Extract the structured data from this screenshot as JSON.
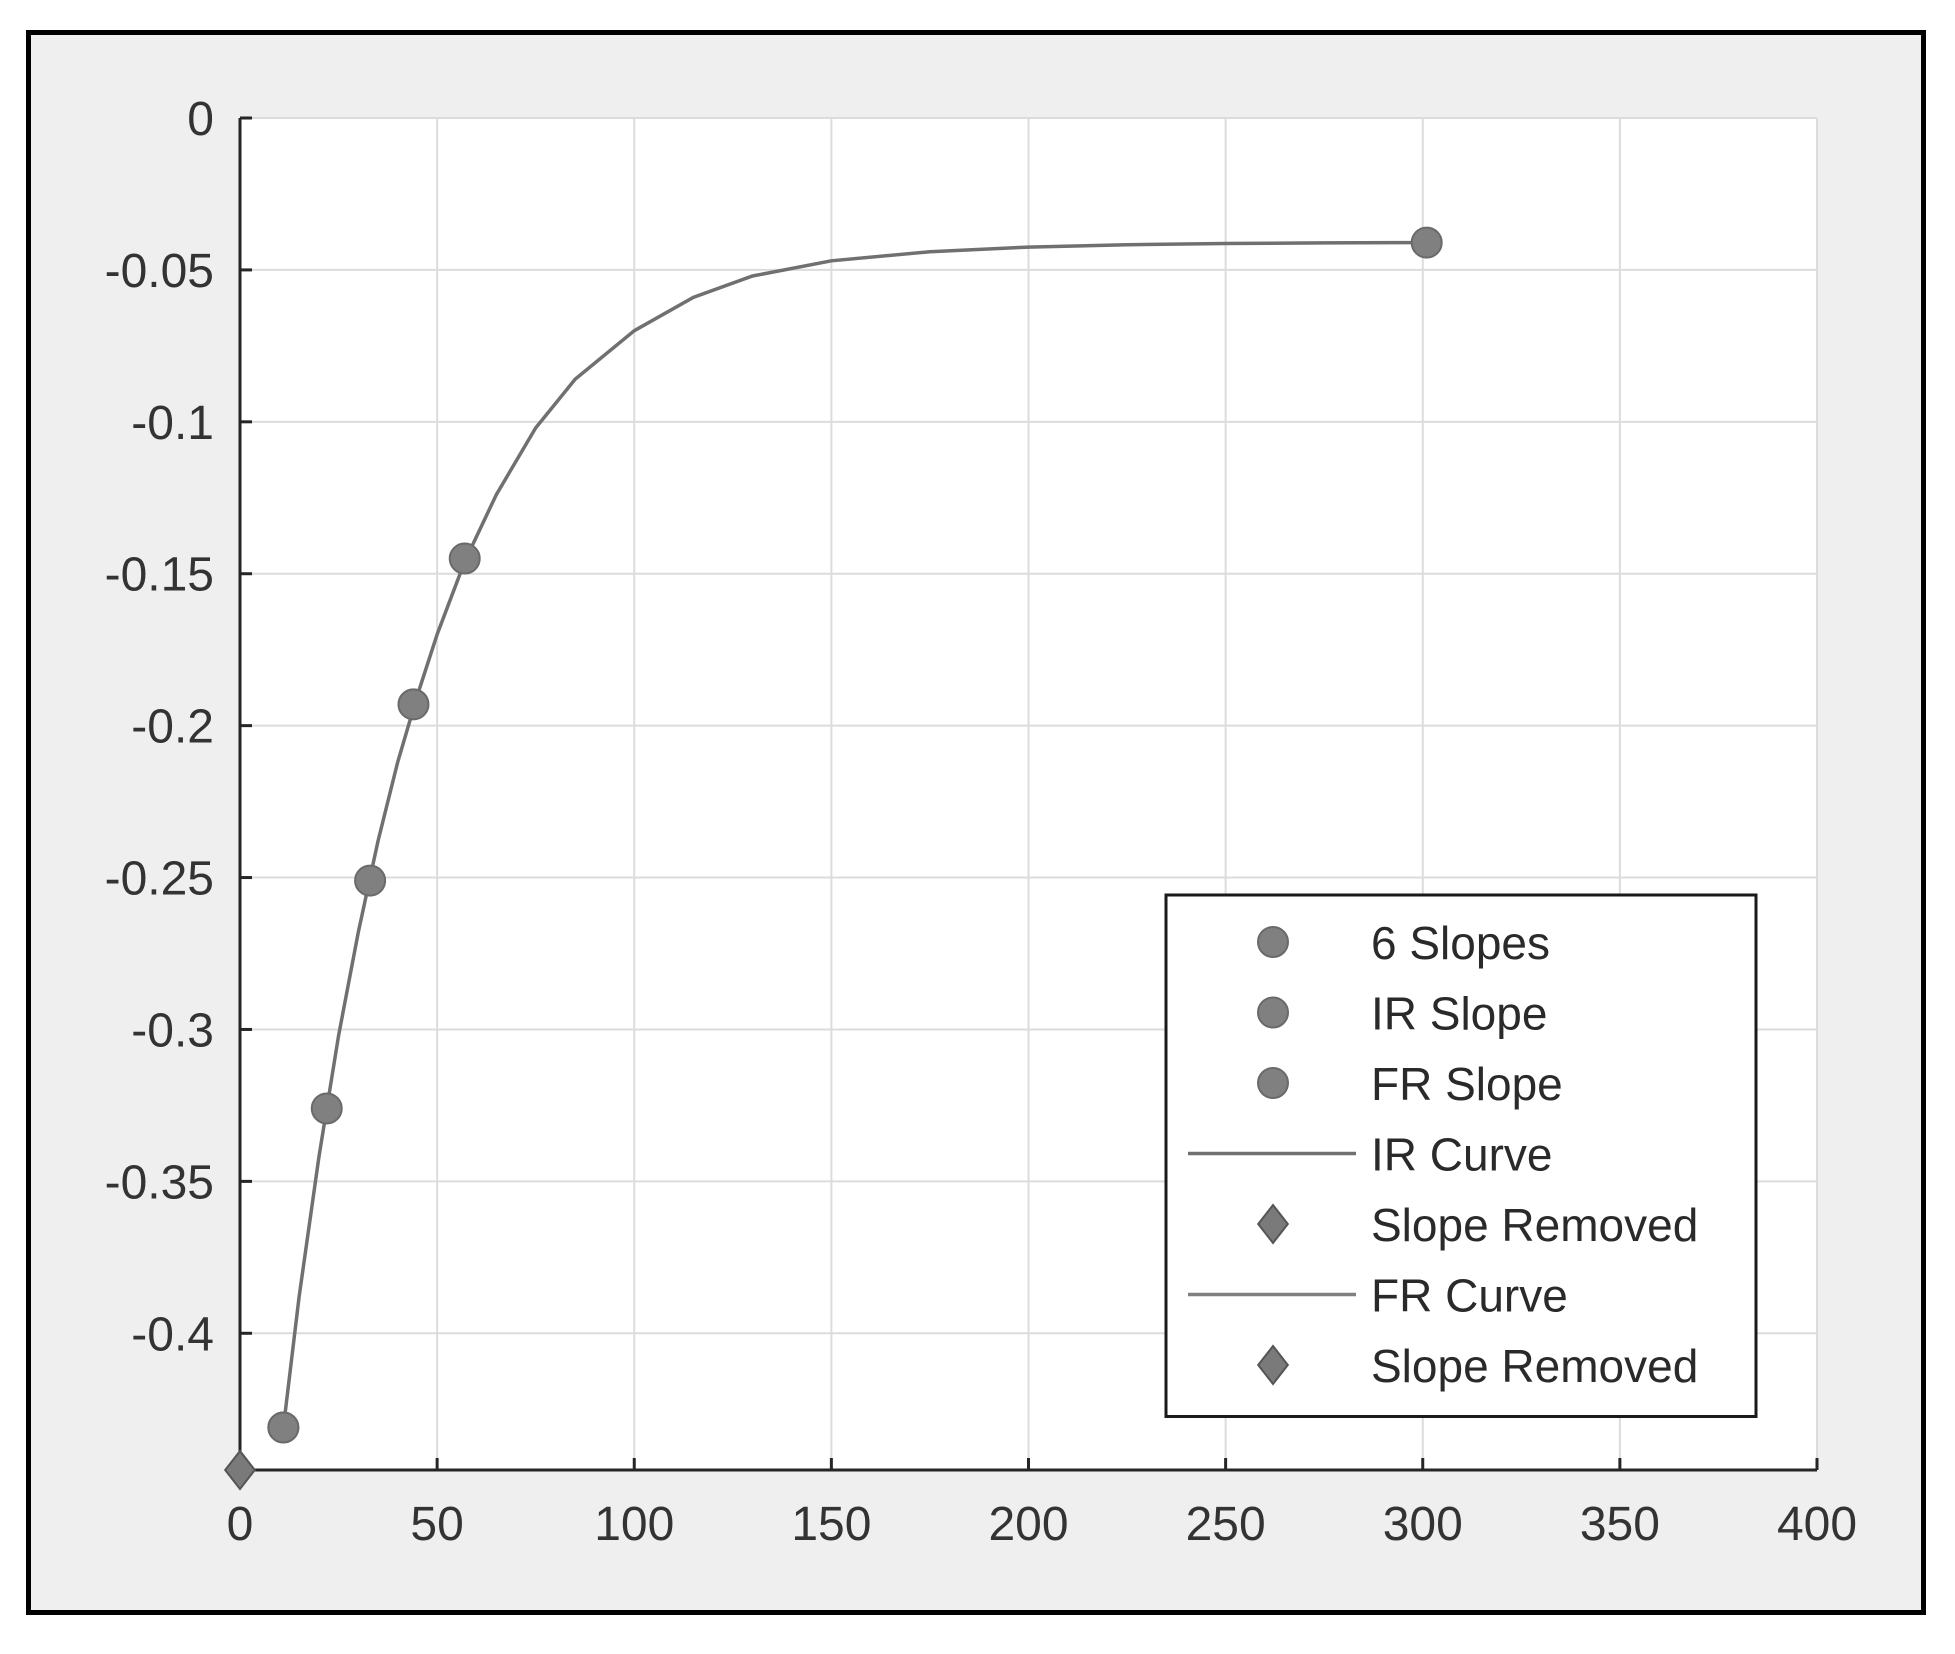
{
  "chart_data": {
    "type": "line",
    "title": "",
    "xlabel": "",
    "ylabel": "",
    "xlim": [
      0,
      400
    ],
    "ylim": [
      -0.445,
      0
    ],
    "grid": true,
    "legend_position": "bottom-right",
    "x_ticks": [
      0,
      50,
      100,
      150,
      200,
      250,
      300,
      350,
      400
    ],
    "x_tick_labels": [
      "0",
      "50",
      "100",
      "150",
      "200",
      "250",
      "300",
      "350",
      "400"
    ],
    "y_ticks": [
      0,
      -0.05,
      -0.1,
      -0.15,
      -0.2,
      -0.25,
      -0.3,
      -0.35,
      -0.4
    ],
    "y_tick_labels": [
      "0",
      "-0.05",
      "-0.1",
      "-0.15",
      "-0.2",
      "-0.25",
      "-0.3",
      "-0.35",
      "-0.4"
    ],
    "series": [
      {
        "name": "6 Slopes",
        "kind": "marker",
        "marker": "circle",
        "color": "#808080",
        "x": [
          11,
          22,
          33,
          44,
          57
        ],
        "y": [
          -0.431,
          -0.326,
          -0.251,
          -0.193,
          -0.145
        ]
      },
      {
        "name": "IR Slope",
        "kind": "marker",
        "marker": "circle",
        "color": "#808080",
        "x": [
          11
        ],
        "y": [
          -0.431
        ]
      },
      {
        "name": "FR Slope",
        "kind": "marker",
        "marker": "circle",
        "color": "#808080",
        "x": [
          301
        ],
        "y": [
          -0.041
        ]
      },
      {
        "name": "IR Curve",
        "kind": "line",
        "color": "#707070",
        "x": [
          11,
          15,
          20,
          25,
          30,
          35,
          40,
          45,
          50,
          57,
          65,
          75,
          85,
          100,
          115,
          130,
          150,
          175,
          200,
          225,
          250,
          275,
          301
        ],
        "y": [
          -0.431,
          -0.388,
          -0.342,
          -0.302,
          -0.268,
          -0.238,
          -0.212,
          -0.19,
          -0.17,
          -0.146,
          -0.124,
          -0.102,
          -0.086,
          -0.07,
          -0.059,
          -0.052,
          -0.047,
          -0.044,
          -0.0425,
          -0.0417,
          -0.0413,
          -0.0411,
          -0.041
        ]
      },
      {
        "name": "Slope Removed",
        "kind": "marker",
        "marker": "diamond",
        "color": "#7a7a7a",
        "x": [
          0
        ],
        "y": [
          -0.445
        ]
      },
      {
        "name": "FR Curve",
        "kind": "line",
        "color": "#808080",
        "x": [],
        "y": []
      },
      {
        "name": "Slope Removed",
        "kind": "marker",
        "marker": "diamond",
        "color": "#7a7a7a",
        "x": [],
        "y": []
      }
    ]
  }
}
